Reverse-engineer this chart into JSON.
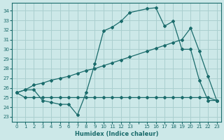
{
  "xlabel": "Humidex (Indice chaleur)",
  "bg_color": "#cce8e8",
  "grid_color": "#aacfcf",
  "line_color": "#1a6b6b",
  "xlim": [
    -0.5,
    23.5
  ],
  "ylim": [
    22.5,
    34.8
  ],
  "xticks": [
    0,
    1,
    2,
    3,
    4,
    5,
    6,
    7,
    8,
    9,
    10,
    11,
    12,
    13,
    14,
    15,
    16,
    17,
    18,
    19,
    20,
    21,
    22,
    23
  ],
  "yticks": [
    23,
    24,
    25,
    26,
    27,
    28,
    29,
    30,
    31,
    32,
    33,
    34
  ],
  "line1_x": [
    0,
    1,
    2,
    3,
    4,
    5,
    6,
    7,
    8,
    9,
    10,
    11,
    12,
    13,
    14,
    15,
    16,
    17,
    18,
    19,
    20,
    21,
    22,
    23
  ],
  "line1_y": [
    25.5,
    25.0,
    25.0,
    25.0,
    25.0,
    25.0,
    25.0,
    25.0,
    25.0,
    25.0,
    25.0,
    25.0,
    25.0,
    25.0,
    25.0,
    25.0,
    25.0,
    25.0,
    25.0,
    25.0,
    25.0,
    25.0,
    25.0,
    24.7
  ],
  "line2_x": [
    0,
    1,
    2,
    3,
    4,
    5,
    6,
    7,
    8,
    9,
    10,
    11,
    12,
    13,
    15,
    16,
    17,
    18,
    19,
    20,
    21,
    22,
    23
  ],
  "line2_y": [
    25.5,
    25.8,
    26.3,
    26.5,
    26.8,
    27.0,
    27.2,
    27.5,
    27.8,
    28.0,
    28.3,
    28.6,
    28.9,
    29.2,
    29.8,
    30.1,
    30.4,
    30.7,
    31.0,
    32.2,
    29.8,
    27.2,
    24.7
  ],
  "line3_x": [
    0,
    1,
    2,
    3,
    4,
    5,
    6,
    7,
    8,
    9,
    10,
    11,
    12,
    13,
    15,
    16,
    17,
    18,
    19,
    20,
    21,
    22,
    23
  ],
  "line3_y": [
    25.5,
    25.8,
    25.8,
    24.7,
    24.5,
    24.3,
    24.3,
    23.2,
    25.5,
    28.5,
    31.9,
    32.3,
    32.9,
    33.8,
    34.2,
    34.3,
    32.4,
    32.9,
    30.0,
    30.0,
    26.8,
    24.7,
    24.7
  ]
}
